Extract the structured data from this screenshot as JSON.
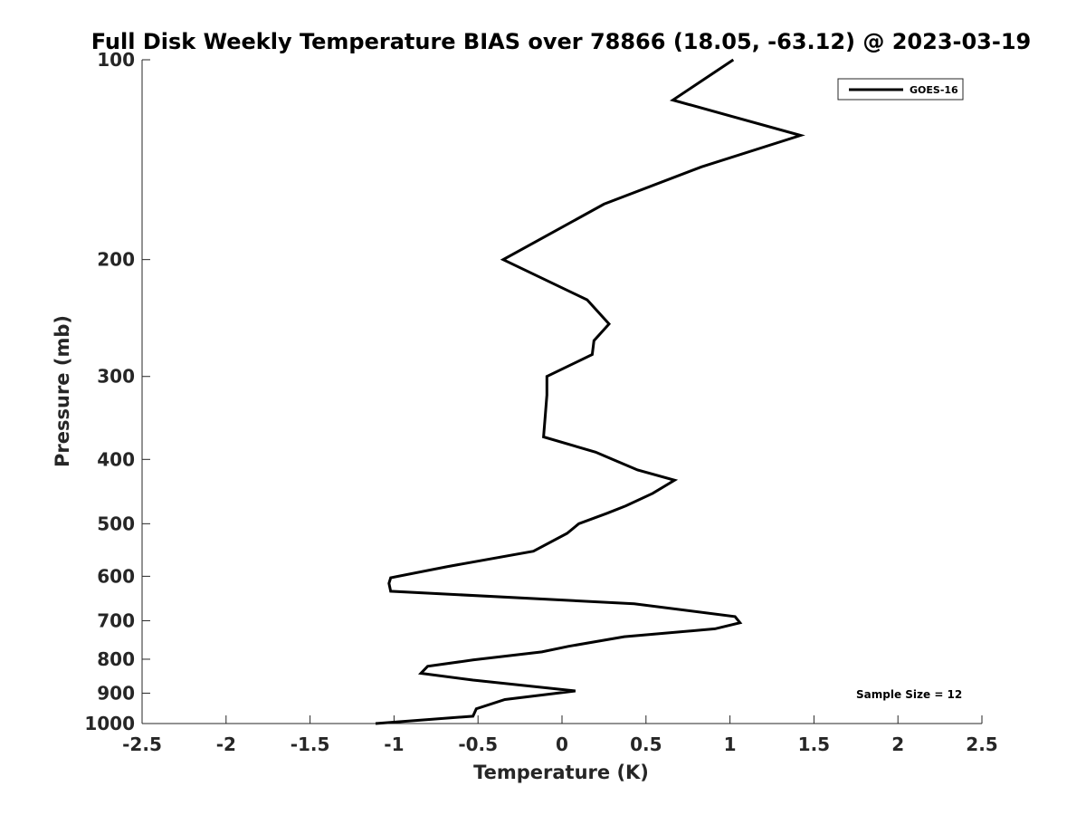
{
  "chart_data": {
    "type": "line",
    "title": "Full Disk Weekly Temperature BIAS over 78866 (18.05, -63.12) @ 2023-03-19",
    "xlabel": "Temperature (K)",
    "ylabel": "Pressure (mb)",
    "xlim": [
      -2.5,
      2.5
    ],
    "ylim": [
      100,
      1000
    ],
    "y_scale": "log",
    "y_reversed": true,
    "grid": false,
    "legend_position": "top-right",
    "x_ticks": [
      "-2.5",
      "-2",
      "-1.5",
      "-1",
      "-0.5",
      "0",
      "0.5",
      "1",
      "1.5",
      "2",
      "2.5"
    ],
    "y_ticks": [
      "100",
      "200",
      "300",
      "400",
      "500",
      "600",
      "700",
      "800",
      "900",
      "1000"
    ],
    "series": [
      {
        "name": "GOES-16",
        "color": "#000000",
        "points": [
          [
            1.02,
            100
          ],
          [
            0.66,
            115
          ],
          [
            1.42,
            130
          ],
          [
            0.83,
            145
          ],
          [
            0.25,
            165
          ],
          [
            -0.35,
            200
          ],
          [
            0.15,
            230
          ],
          [
            0.28,
            250
          ],
          [
            0.19,
            265
          ],
          [
            0.18,
            278
          ],
          [
            -0.09,
            300
          ],
          [
            -0.09,
            320
          ],
          [
            -0.1,
            345
          ],
          [
            -0.11,
            370
          ],
          [
            0.2,
            390
          ],
          [
            0.45,
            415
          ],
          [
            0.67,
            430
          ],
          [
            0.54,
            450
          ],
          [
            0.38,
            470
          ],
          [
            0.27,
            482
          ],
          [
            0.1,
            500
          ],
          [
            0.03,
            517
          ],
          [
            -0.17,
            550
          ],
          [
            -0.68,
            580
          ],
          [
            -1.02,
            603
          ],
          [
            -1.03,
            615
          ],
          [
            -1.02,
            632
          ],
          [
            0.43,
            660
          ],
          [
            1.03,
            690
          ],
          [
            1.06,
            705
          ],
          [
            0.91,
            720
          ],
          [
            0.37,
            740
          ],
          [
            0.04,
            765
          ],
          [
            -0.12,
            780
          ],
          [
            -0.53,
            802
          ],
          [
            -0.8,
            820
          ],
          [
            -0.84,
            840
          ],
          [
            -0.53,
            860
          ],
          [
            0.08,
            893
          ],
          [
            -0.34,
            920
          ],
          [
            -0.51,
            950
          ],
          [
            -0.53,
            975
          ],
          [
            -1.11,
            1000
          ]
        ]
      }
    ],
    "annotations": [
      "Sample Size = 12"
    ]
  }
}
